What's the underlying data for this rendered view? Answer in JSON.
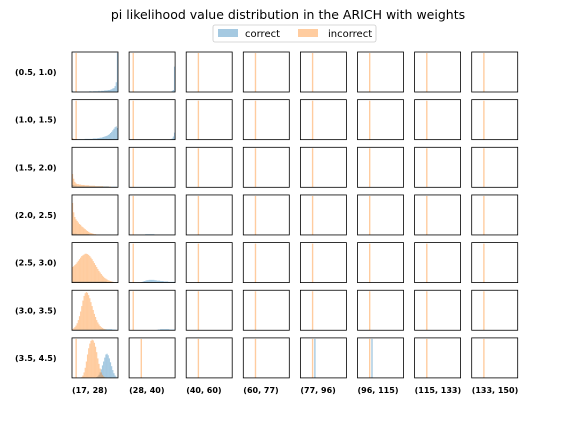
{
  "chart_data": {
    "type": "histogram-grid",
    "title": "pi likelihood value distribution in the ARICH with weights",
    "legend": {
      "placement": "top-center",
      "entries": [
        {
          "name": "correct",
          "color": "#1f77b4",
          "alpha": 0.4
        },
        {
          "name": "incorrect",
          "color": "#ff7f0e",
          "alpha": 0.4
        }
      ]
    },
    "row_labels": [
      "(0.5, 1.0)",
      "(1.0, 1.5)",
      "(1.5, 2.0)",
      "(2.0, 2.5)",
      "(2.5, 3.0)",
      "(3.0, 3.5)",
      "(3.5, 4.5)"
    ],
    "col_labels": [
      "(17, 28)",
      "(28, 40)",
      "(40, 60)",
      "(60, 77)",
      "(77, 96)",
      "(96, 115)",
      "(115, 133)",
      "(133, 150)"
    ],
    "bins": 40,
    "panels": [
      {
        "row": 0,
        "col": 0,
        "correct": [
          3,
          1,
          1,
          1,
          1,
          1,
          1,
          1,
          1,
          1,
          1,
          1,
          1,
          1,
          1,
          2,
          2,
          1,
          2,
          2,
          2,
          2,
          2,
          3,
          2,
          3,
          3,
          3,
          4,
          4,
          4,
          5,
          5,
          6,
          7,
          9,
          10,
          15,
          25,
          100
        ],
        "incorrect": [
          0,
          0,
          0,
          0,
          0,
          0,
          0,
          0,
          0,
          0,
          0,
          0,
          0,
          0,
          0,
          0,
          0,
          0,
          0,
          0,
          0,
          0,
          0,
          0,
          0,
          0,
          0,
          0,
          0,
          0,
          0,
          0,
          0,
          0,
          0,
          0,
          0,
          0,
          0,
          0
        ],
        "incorrect_spike": {
          "bin": 3,
          "height": 100
        }
      },
      {
        "row": 0,
        "col": 1,
        "correct": [
          0,
          0,
          0,
          0,
          0,
          0,
          0,
          0,
          0,
          0,
          0,
          0,
          0,
          0,
          0,
          0,
          0,
          0,
          0,
          0,
          0,
          0,
          0,
          0,
          0,
          0,
          0,
          0,
          0,
          0,
          0,
          0,
          0,
          0,
          0,
          0,
          0,
          3,
          5,
          65
        ],
        "incorrect": [
          0,
          0,
          0,
          0,
          0,
          0,
          0,
          0,
          0,
          0,
          0,
          0,
          0,
          0,
          0,
          0,
          0,
          0,
          0,
          0,
          0,
          0,
          0,
          0,
          0,
          0,
          0,
          0,
          0,
          0,
          0,
          0,
          0,
          0,
          0,
          0,
          0,
          0,
          0,
          0
        ],
        "incorrect_spike": {
          "bin": 3,
          "height": 100
        }
      },
      {
        "row": 1,
        "col": 0,
        "correct": [
          2,
          1,
          1,
          1,
          1,
          1,
          1,
          1,
          1,
          1,
          1,
          2,
          2,
          2,
          2,
          2,
          2,
          2,
          3,
          3,
          3,
          3,
          4,
          4,
          5,
          5,
          6,
          7,
          8,
          9,
          10,
          12,
          14,
          17,
          20,
          24,
          28,
          32,
          34,
          30
        ],
        "incorrect": [
          4,
          2,
          1,
          0,
          0,
          0,
          0,
          0,
          0,
          0,
          0,
          0,
          0,
          0,
          0,
          0,
          0,
          0,
          0,
          0,
          0,
          0,
          0,
          0,
          0,
          0,
          0,
          0,
          0,
          0,
          0,
          0,
          0,
          0,
          0,
          0,
          0,
          0,
          0,
          0
        ],
        "incorrect_spike": {
          "bin": 3,
          "height": 100
        }
      },
      {
        "row": 1,
        "col": 1,
        "correct": [
          0,
          0,
          0,
          0,
          0,
          0,
          0,
          0,
          0,
          0,
          0,
          0,
          0,
          0,
          0,
          0,
          0,
          0,
          0,
          0,
          0,
          0,
          0,
          0,
          0,
          0,
          0,
          0,
          0,
          0,
          0,
          0,
          0,
          0,
          0,
          0,
          1,
          3,
          8,
          18
        ],
        "incorrect": [
          0,
          0,
          0,
          0,
          0,
          0,
          0,
          0,
          0,
          0,
          0,
          0,
          0,
          0,
          0,
          0,
          0,
          0,
          0,
          0,
          0,
          0,
          0,
          0,
          0,
          0,
          0,
          0,
          0,
          0,
          0,
          0,
          0,
          0,
          0,
          0,
          0,
          0,
          0,
          0
        ],
        "incorrect_spike": {
          "bin": 3,
          "height": 100
        }
      },
      {
        "row": 2,
        "col": 0,
        "correct": [
          6,
          5,
          4,
          4,
          3,
          3,
          3,
          3,
          3,
          3,
          3,
          3,
          3,
          3,
          3,
          3,
          3,
          3,
          3,
          3,
          3,
          3,
          3,
          3,
          3,
          3,
          3,
          3,
          3,
          3,
          3,
          3,
          2,
          2,
          2,
          2,
          2,
          2,
          2,
          1
        ],
        "incorrect": [
          34,
          22,
          14,
          10,
          8,
          8,
          7,
          7,
          6,
          6,
          6,
          5,
          5,
          5,
          5,
          4,
          4,
          4,
          4,
          4,
          3,
          3,
          3,
          3,
          3,
          3,
          3,
          2,
          2,
          2,
          2,
          2,
          2,
          2,
          1,
          1,
          1,
          1,
          1,
          0
        ],
        "incorrect_spike": {
          "bin": 0,
          "height": 0
        }
      },
      {
        "row": 2,
        "col": 1,
        "correct": [
          1,
          1,
          1,
          1,
          1,
          1,
          1,
          1,
          1,
          1,
          1,
          1,
          1,
          1,
          1,
          1,
          1,
          1,
          1,
          1,
          1,
          1,
          1,
          1,
          1,
          1,
          1,
          1,
          1,
          1,
          1,
          1,
          1,
          1,
          1,
          1,
          1,
          1,
          1,
          1
        ],
        "incorrect": [
          0,
          0,
          0,
          0,
          0,
          0,
          0,
          0,
          0,
          0,
          0,
          0,
          0,
          0,
          0,
          0,
          0,
          0,
          0,
          0,
          0,
          0,
          0,
          0,
          0,
          0,
          0,
          0,
          0,
          0,
          0,
          0,
          0,
          0,
          0,
          0,
          0,
          0,
          0,
          0
        ],
        "incorrect_spike": {
          "bin": 3,
          "height": 100
        }
      },
      {
        "row": 3,
        "col": 0,
        "correct": [
          3,
          3,
          3,
          3,
          2,
          2,
          2,
          2,
          2,
          2,
          2,
          2,
          2,
          2,
          2,
          1,
          1,
          1,
          1,
          1,
          1,
          1,
          1,
          1,
          1,
          1,
          1,
          1,
          1,
          1,
          1,
          1,
          1,
          1,
          0,
          0,
          0,
          0,
          0,
          0
        ],
        "incorrect": [
          82,
          58,
          46,
          40,
          36,
          32,
          28,
          26,
          22,
          20,
          17,
          15,
          12,
          10,
          8,
          6,
          5,
          4,
          3,
          2,
          2,
          1,
          1,
          1,
          1,
          0,
          0,
          0,
          0,
          0,
          0,
          0,
          0,
          0,
          0,
          0,
          0,
          0,
          0,
          0
        ],
        "incorrect_spike": {
          "bin": 0,
          "height": 0
        }
      },
      {
        "row": 3,
        "col": 1,
        "correct": [
          1,
          1,
          1,
          1,
          1,
          1,
          1,
          1,
          1,
          1,
          1,
          1,
          1,
          1,
          2,
          2,
          2,
          2,
          2,
          2,
          2,
          2,
          1,
          1,
          1,
          1,
          1,
          1,
          1,
          1,
          1,
          1,
          1,
          1,
          1,
          1,
          1,
          1,
          1,
          1
        ],
        "incorrect": [
          0,
          0,
          0,
          0,
          0,
          0,
          0,
          0,
          0,
          0,
          0,
          0,
          0,
          0,
          0,
          0,
          0,
          0,
          0,
          0,
          0,
          0,
          0,
          0,
          0,
          0,
          0,
          0,
          0,
          0,
          0,
          0,
          0,
          0,
          0,
          0,
          0,
          0,
          0,
          0
        ],
        "incorrect_spike": {
          "bin": 3,
          "height": 100
        }
      },
      {
        "row": 4,
        "col": 0,
        "correct": [
          3,
          3,
          3,
          3,
          3,
          3,
          3,
          3,
          3,
          3,
          3,
          3,
          3,
          3,
          3,
          3,
          3,
          3,
          3,
          3,
          3,
          3,
          3,
          3,
          3,
          3,
          3,
          3,
          3,
          3,
          2,
          2,
          2,
          2,
          2,
          2,
          1,
          1,
          1,
          1
        ],
        "incorrect": [
          40,
          42,
          45,
          48,
          52,
          56,
          60,
          64,
          68,
          70,
          72,
          74,
          74,
          73,
          71,
          68,
          64,
          60,
          55,
          50,
          45,
          40,
          35,
          30,
          26,
          22,
          18,
          15,
          12,
          10,
          8,
          6,
          5,
          4,
          3,
          2,
          1,
          1,
          0,
          0
        ],
        "incorrect_spike": {
          "bin": 0,
          "height": 0
        }
      },
      {
        "row": 4,
        "col": 1,
        "correct": [
          0,
          0,
          0,
          0,
          0,
          0,
          0,
          0,
          0,
          0,
          1,
          2,
          3,
          4,
          5,
          6,
          6,
          7,
          7,
          7,
          7,
          7,
          6,
          6,
          5,
          5,
          5,
          4,
          4,
          4,
          3,
          3,
          3,
          3,
          2,
          2,
          2,
          2,
          2,
          2
        ],
        "incorrect": [
          0,
          0,
          0,
          0,
          0,
          0,
          0,
          0,
          0,
          0,
          0,
          0,
          0,
          0,
          0,
          0,
          0,
          0,
          0,
          0,
          0,
          0,
          0,
          0,
          0,
          0,
          0,
          0,
          0,
          0,
          0,
          0,
          0,
          0,
          0,
          0,
          0,
          0,
          0,
          0
        ],
        "incorrect_spike": {
          "bin": 3,
          "height": 100
        }
      },
      {
        "row": 5,
        "col": 0,
        "correct": [
          2,
          2,
          2,
          2,
          2,
          2,
          2,
          2,
          2,
          2,
          2,
          2,
          2,
          2,
          2,
          2,
          2,
          2,
          2,
          2,
          2,
          2,
          2,
          2,
          3,
          3,
          3,
          3,
          3,
          3,
          3,
          3,
          3,
          3,
          3,
          2,
          2,
          2,
          1,
          1
        ],
        "incorrect": [
          3,
          5,
          8,
          12,
          18,
          26,
          36,
          48,
          62,
          76,
          88,
          95,
          98,
          96,
          90,
          82,
          72,
          62,
          52,
          42,
          34,
          26,
          20,
          15,
          11,
          8,
          6,
          4,
          3,
          2,
          1,
          1,
          1,
          0,
          0,
          0,
          0,
          0,
          0,
          0
        ],
        "incorrect_spike": {
          "bin": 0,
          "height": 0
        }
      },
      {
        "row": 5,
        "col": 1,
        "correct": [
          0,
          0,
          0,
          0,
          0,
          0,
          0,
          0,
          0,
          0,
          0,
          0,
          0,
          0,
          0,
          0,
          0,
          0,
          0,
          0,
          0,
          0,
          0,
          0,
          1,
          2,
          2,
          3,
          3,
          3,
          3,
          3,
          3,
          3,
          3,
          2,
          2,
          2,
          2,
          2
        ],
        "incorrect": [
          0,
          0,
          0,
          0,
          0,
          0,
          0,
          0,
          0,
          0,
          0,
          0,
          0,
          0,
          0,
          0,
          0,
          0,
          0,
          0,
          0,
          0,
          0,
          0,
          0,
          0,
          0,
          0,
          0,
          0,
          0,
          0,
          0,
          0,
          0,
          0,
          0,
          0,
          0,
          0
        ],
        "incorrect_spike": {
          "bin": 3,
          "height": 100
        }
      },
      {
        "row": 6,
        "col": 0,
        "correct": [
          0,
          0,
          0,
          0,
          0,
          0,
          0,
          0,
          0,
          0,
          0,
          0,
          0,
          0,
          0,
          0,
          0,
          0,
          0,
          0,
          1,
          2,
          4,
          8,
          14,
          22,
          32,
          42,
          52,
          60,
          62,
          58,
          50,
          40,
          30,
          20,
          12,
          6,
          3,
          1
        ],
        "incorrect": [
          0,
          0,
          0,
          0,
          0,
          0,
          0,
          0,
          2,
          6,
          14,
          26,
          42,
          60,
          76,
          88,
          95,
          98,
          96,
          90,
          80,
          66,
          50,
          36,
          24,
          14,
          8,
          4,
          2,
          1,
          0,
          0,
          0,
          0,
          0,
          0,
          0,
          0,
          0,
          0
        ],
        "incorrect_spike": {
          "bin": 3,
          "height": 100
        }
      },
      {
        "row": 6,
        "col": 1,
        "correct": [
          0,
          0,
          0,
          0,
          0,
          0,
          0,
          0,
          0,
          0,
          0,
          0,
          0,
          0,
          0,
          0,
          0,
          0,
          0,
          0,
          0,
          0,
          0,
          0,
          0,
          0,
          0,
          0,
          0,
          0,
          0,
          0,
          0,
          0,
          0,
          0,
          0,
          0,
          0,
          0
        ],
        "incorrect": [
          0,
          0,
          0,
          0,
          0,
          0,
          0,
          0,
          0,
          0,
          0,
          0,
          0,
          0,
          0,
          0,
          0,
          0,
          0,
          0,
          0,
          0,
          0,
          0,
          0,
          0,
          0,
          0,
          0,
          0,
          0,
          0,
          0,
          0,
          0,
          0,
          0,
          0,
          0,
          0
        ],
        "incorrect_spike": {
          "bin": 10,
          "height": 100
        }
      }
    ],
    "empty_panel_spikes": {
      "incorrect_bin": 10,
      "incorrect_height": 100,
      "correct_bin": 12,
      "correct_height": 100
    },
    "special_spikes": [
      {
        "row": 6,
        "col": 4,
        "correct": {
          "bin": 12,
          "height": 100
        }
      },
      {
        "row": 6,
        "col": 5,
        "correct": {
          "bin": 12,
          "height": 100
        }
      }
    ]
  }
}
